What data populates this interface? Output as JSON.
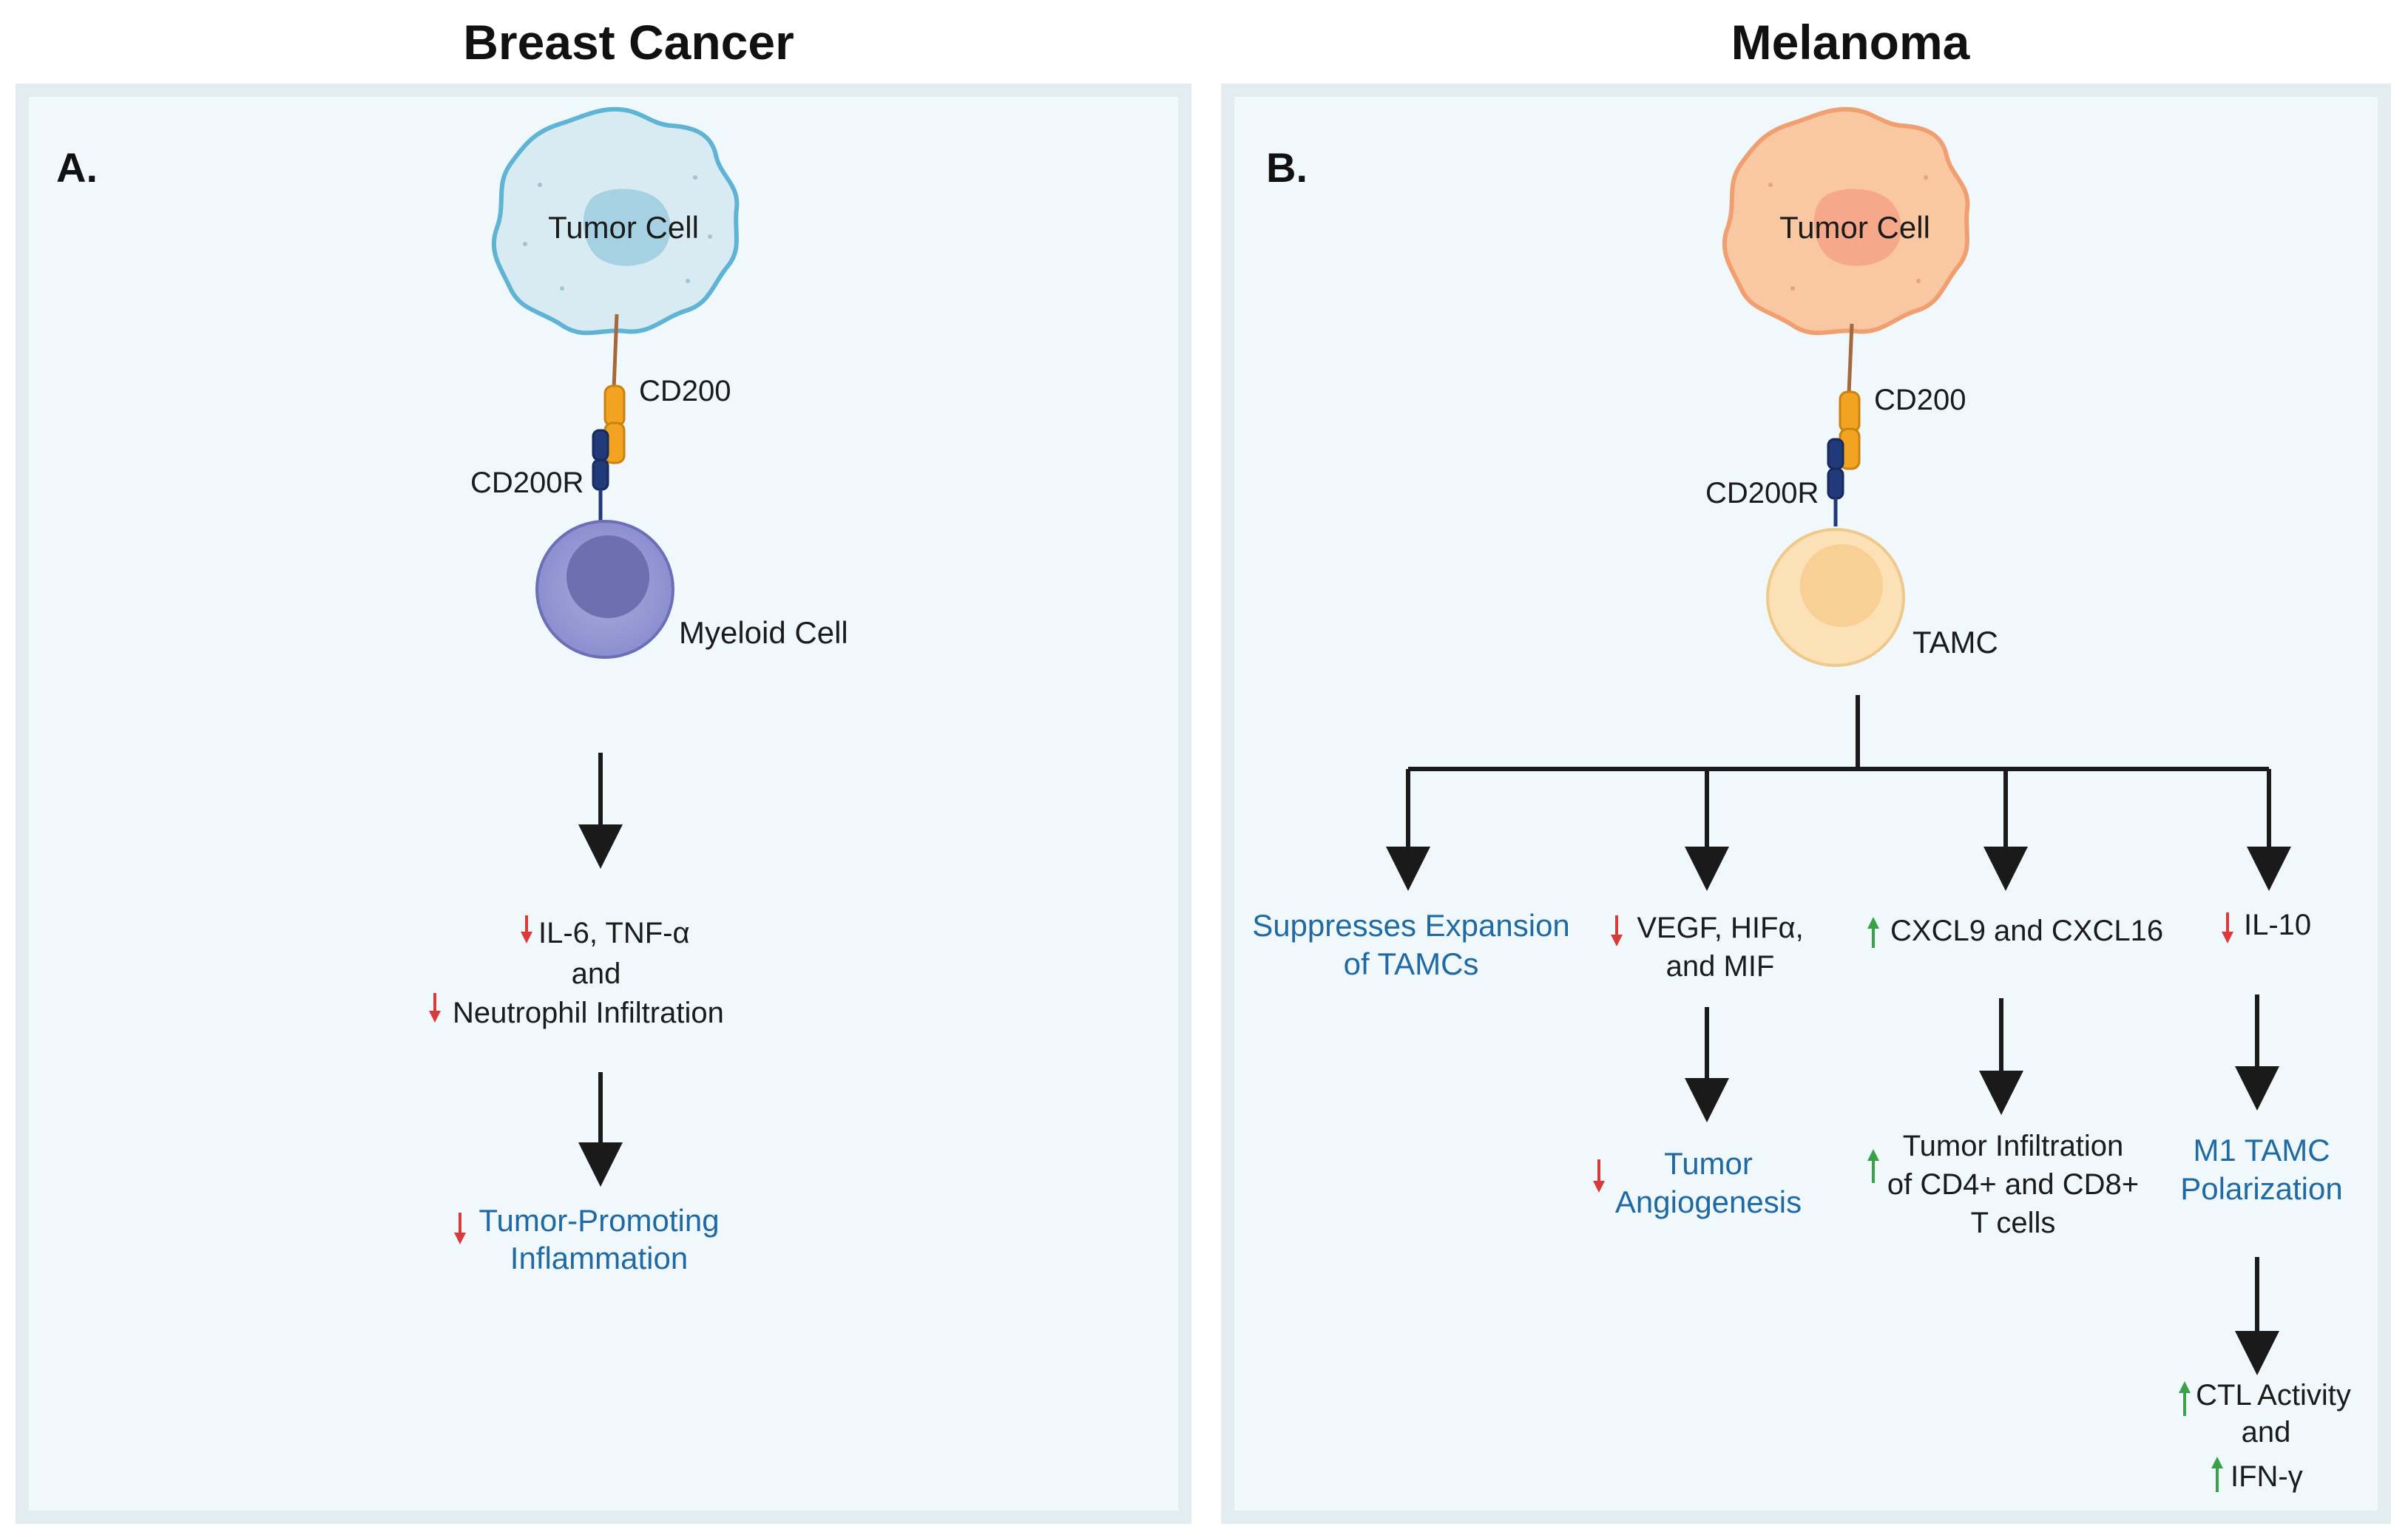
{
  "titles": {
    "left": "Breast Cancer",
    "right": "Melanoma"
  },
  "colors": {
    "red_arrow": "#d93a3a",
    "green_arrow": "#3aa14a",
    "outcome_blue": "#1f6aa5",
    "panel_bg": "#f1f8fb"
  },
  "panel_a": {
    "letter": "A.",
    "tumor_cell": "Tumor Cell",
    "ligand": "CD200",
    "receptor": "CD200R",
    "target_cell": "Myeloid Cell",
    "effects": {
      "line1": "IL-6, TNF-α",
      "line2": "and",
      "line3": "Neutrophil Infiltration"
    },
    "outcome": {
      "line1": "Tumor-Promoting",
      "line2": "Inflammation"
    }
  },
  "panel_b": {
    "letter": "B.",
    "tumor_cell": "Tumor Cell",
    "ligand": "CD200",
    "receptor": "CD200R",
    "target_cell": "TAMC",
    "branch1": {
      "line1": "Suppresses Expansion",
      "line2": "of TAMCs"
    },
    "branch2": {
      "effect": {
        "line1": "VEGF, HIFα,",
        "line2": "and MIF"
      },
      "outcome": {
        "line1": "Tumor",
        "line2": "Angiogenesis"
      }
    },
    "branch3": {
      "effect": "CXCL9 and CXCL16",
      "outcome": {
        "line1": "Tumor Infiltration",
        "line2": "of CD4+ and CD8+",
        "line3": "T cells"
      }
    },
    "branch4": {
      "effect": "IL-10",
      "outcome": {
        "line1": "M1 TAMC",
        "line2": "Polarization"
      },
      "final": {
        "line1": "CTL Activity",
        "line2": "and",
        "line3": "IFN-γ"
      }
    }
  }
}
